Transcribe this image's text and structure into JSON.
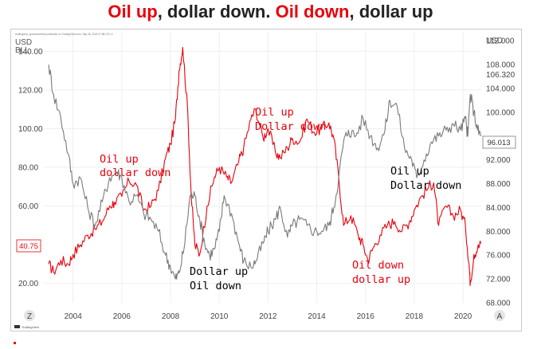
{
  "slide": {
    "title_parts": [
      {
        "text": "Oil up",
        "color": "#e8000b"
      },
      {
        "text": ", dollar down. ",
        "color": "#222222"
      },
      {
        "text": "Oil down",
        "color": "#e8000b"
      },
      {
        "text": ", dollar up",
        "color": "#222222"
      }
    ]
  },
  "chart_data": {
    "type": "line",
    "title": "",
    "attribution": "tradingview_spectrometrics published on TradingView.com, Sep 28, 2023 07:58 UTC-4",
    "watermark": "TradingView",
    "left_axis": {
      "unit_label_1": "USD",
      "unit_label_2": "BLL",
      "ticks": [
        "140.00",
        "120.00",
        "100.00",
        "80.00",
        "60.00",
        "20.00"
      ],
      "range": [
        10,
        150
      ]
    },
    "right_axis": {
      "unit_label": "USD",
      "ticks": [
        "112.000",
        "108.000",
        "106.320",
        "104.000",
        "100.000",
        "92.000",
        "88.000",
        "84.000",
        "80.000",
        "76.000",
        "72.000",
        "68.000"
      ],
      "range": [
        68,
        113.5
      ]
    },
    "x_axis": {
      "ticks": [
        "2004",
        "2006",
        "2008",
        "2010",
        "2012",
        "2014",
        "2016",
        "2018",
        "2020"
      ],
      "range": [
        2002.8,
        2020.75
      ]
    },
    "grid": true,
    "left_button": "Z",
    "right_button": "A",
    "price_labels": {
      "oil": "40.75",
      "dollar": "96.013"
    },
    "colors": {
      "oil": "#e8000b",
      "dollar": "#7a7a7a",
      "text": "#000000"
    },
    "series": [
      {
        "name": "Oil",
        "axis": "left",
        "color": "#e8000b",
        "x": [
          2003.0,
          2003.2,
          2003.5,
          2003.8,
          2004.0,
          2004.3,
          2004.6,
          2004.9,
          2005.2,
          2005.5,
          2005.7,
          2006.0,
          2006.3,
          2006.6,
          2006.9,
          2007.2,
          2007.5,
          2007.8,
          2008.0,
          2008.2,
          2008.35,
          2008.5,
          2008.7,
          2008.85,
          2009.0,
          2009.2,
          2009.5,
          2009.8,
          2010.0,
          2010.3,
          2010.5,
          2010.8,
          2011.0,
          2011.3,
          2011.5,
          2011.8,
          2012.0,
          2012.3,
          2012.5,
          2012.8,
          2013.0,
          2013.3,
          2013.6,
          2013.9,
          2014.2,
          2014.5,
          2014.7,
          2014.9,
          2015.1,
          2015.4,
          2015.7,
          2015.9,
          2016.1,
          2016.3,
          2016.6,
          2016.9,
          2017.2,
          2017.5,
          2017.8,
          2018.0,
          2018.3,
          2018.6,
          2018.8,
          2019.0,
          2019.3,
          2019.6,
          2019.9,
          2020.1,
          2020.25,
          2020.3,
          2020.45,
          2020.6,
          2020.75
        ],
        "values": [
          30,
          26,
          32,
          30,
          35,
          40,
          45,
          48,
          52,
          60,
          62,
          65,
          73,
          71,
          58,
          60,
          68,
          85,
          92,
          105,
          130,
          142,
          110,
          65,
          40,
          35,
          60,
          75,
          80,
          75,
          72,
          83,
          90,
          105,
          110,
          95,
          100,
          88,
          85,
          90,
          95,
          93,
          105,
          98,
          100,
          103,
          95,
          75,
          50,
          55,
          45,
          40,
          32,
          38,
          45,
          50,
          52,
          47,
          52,
          58,
          65,
          70,
          72,
          50,
          60,
          55,
          58,
          50,
          30,
          20,
          35,
          38,
          40.75
        ]
      },
      {
        "name": "Dollar",
        "axis": "right",
        "color": "#7a7a7a",
        "x": [
          2003.0,
          2003.2,
          2003.5,
          2003.8,
          2004.0,
          2004.3,
          2004.6,
          2004.9,
          2005.2,
          2005.5,
          2005.8,
          2006.0,
          2006.3,
          2006.6,
          2006.9,
          2007.2,
          2007.5,
          2007.8,
          2008.0,
          2008.2,
          2008.35,
          2008.55,
          2008.8,
          2009.0,
          2009.2,
          2009.4,
          2009.6,
          2009.8,
          2010.0,
          2010.2,
          2010.5,
          2010.8,
          2011.0,
          2011.3,
          2011.5,
          2011.8,
          2012.0,
          2012.3,
          2012.5,
          2012.8,
          2013.0,
          2013.3,
          2013.6,
          2013.9,
          2014.2,
          2014.5,
          2014.7,
          2014.9,
          2015.1,
          2015.3,
          2015.6,
          2015.9,
          2016.2,
          2016.5,
          2016.8,
          2017.0,
          2017.3,
          2017.6,
          2017.9,
          2018.1,
          2018.4,
          2018.7,
          2019.0,
          2019.3,
          2019.6,
          2019.9,
          2020.1,
          2020.2,
          2020.3,
          2020.45,
          2020.6,
          2020.75
        ],
        "values": [
          108,
          103,
          99,
          93,
          88,
          89,
          84,
          81,
          85,
          89,
          90,
          89,
          85,
          86,
          83,
          82,
          80,
          76,
          74,
          72,
          73,
          77,
          86,
          86,
          82,
          78,
          76,
          77,
          80,
          86,
          83,
          78,
          75,
          74,
          75,
          78,
          80,
          82,
          84,
          79,
          81,
          82,
          81,
          80,
          80,
          81,
          84,
          89,
          95,
          97,
          96,
          99,
          96,
          94,
          97,
          102,
          101,
          94,
          92,
          89,
          92,
          95,
          96,
          97,
          98,
          97,
          99,
          96,
          103,
          100,
          97,
          96.013
        ]
      }
    ],
    "annotations": [
      {
        "lines": [
          "Oil up",
          "dollar down"
        ],
        "color": "#e8000b"
      },
      {
        "lines": [
          "Oil up",
          "Dollar down"
        ],
        "color": "#e8000b"
      },
      {
        "lines": [
          "Dollar up",
          "Oil down"
        ],
        "color": "#000000"
      },
      {
        "lines": [
          "Oil up",
          "Dollar down"
        ],
        "color": "#000000"
      },
      {
        "lines": [
          "Oil down",
          "dollar up"
        ],
        "color": "#e8000b"
      }
    ]
  }
}
